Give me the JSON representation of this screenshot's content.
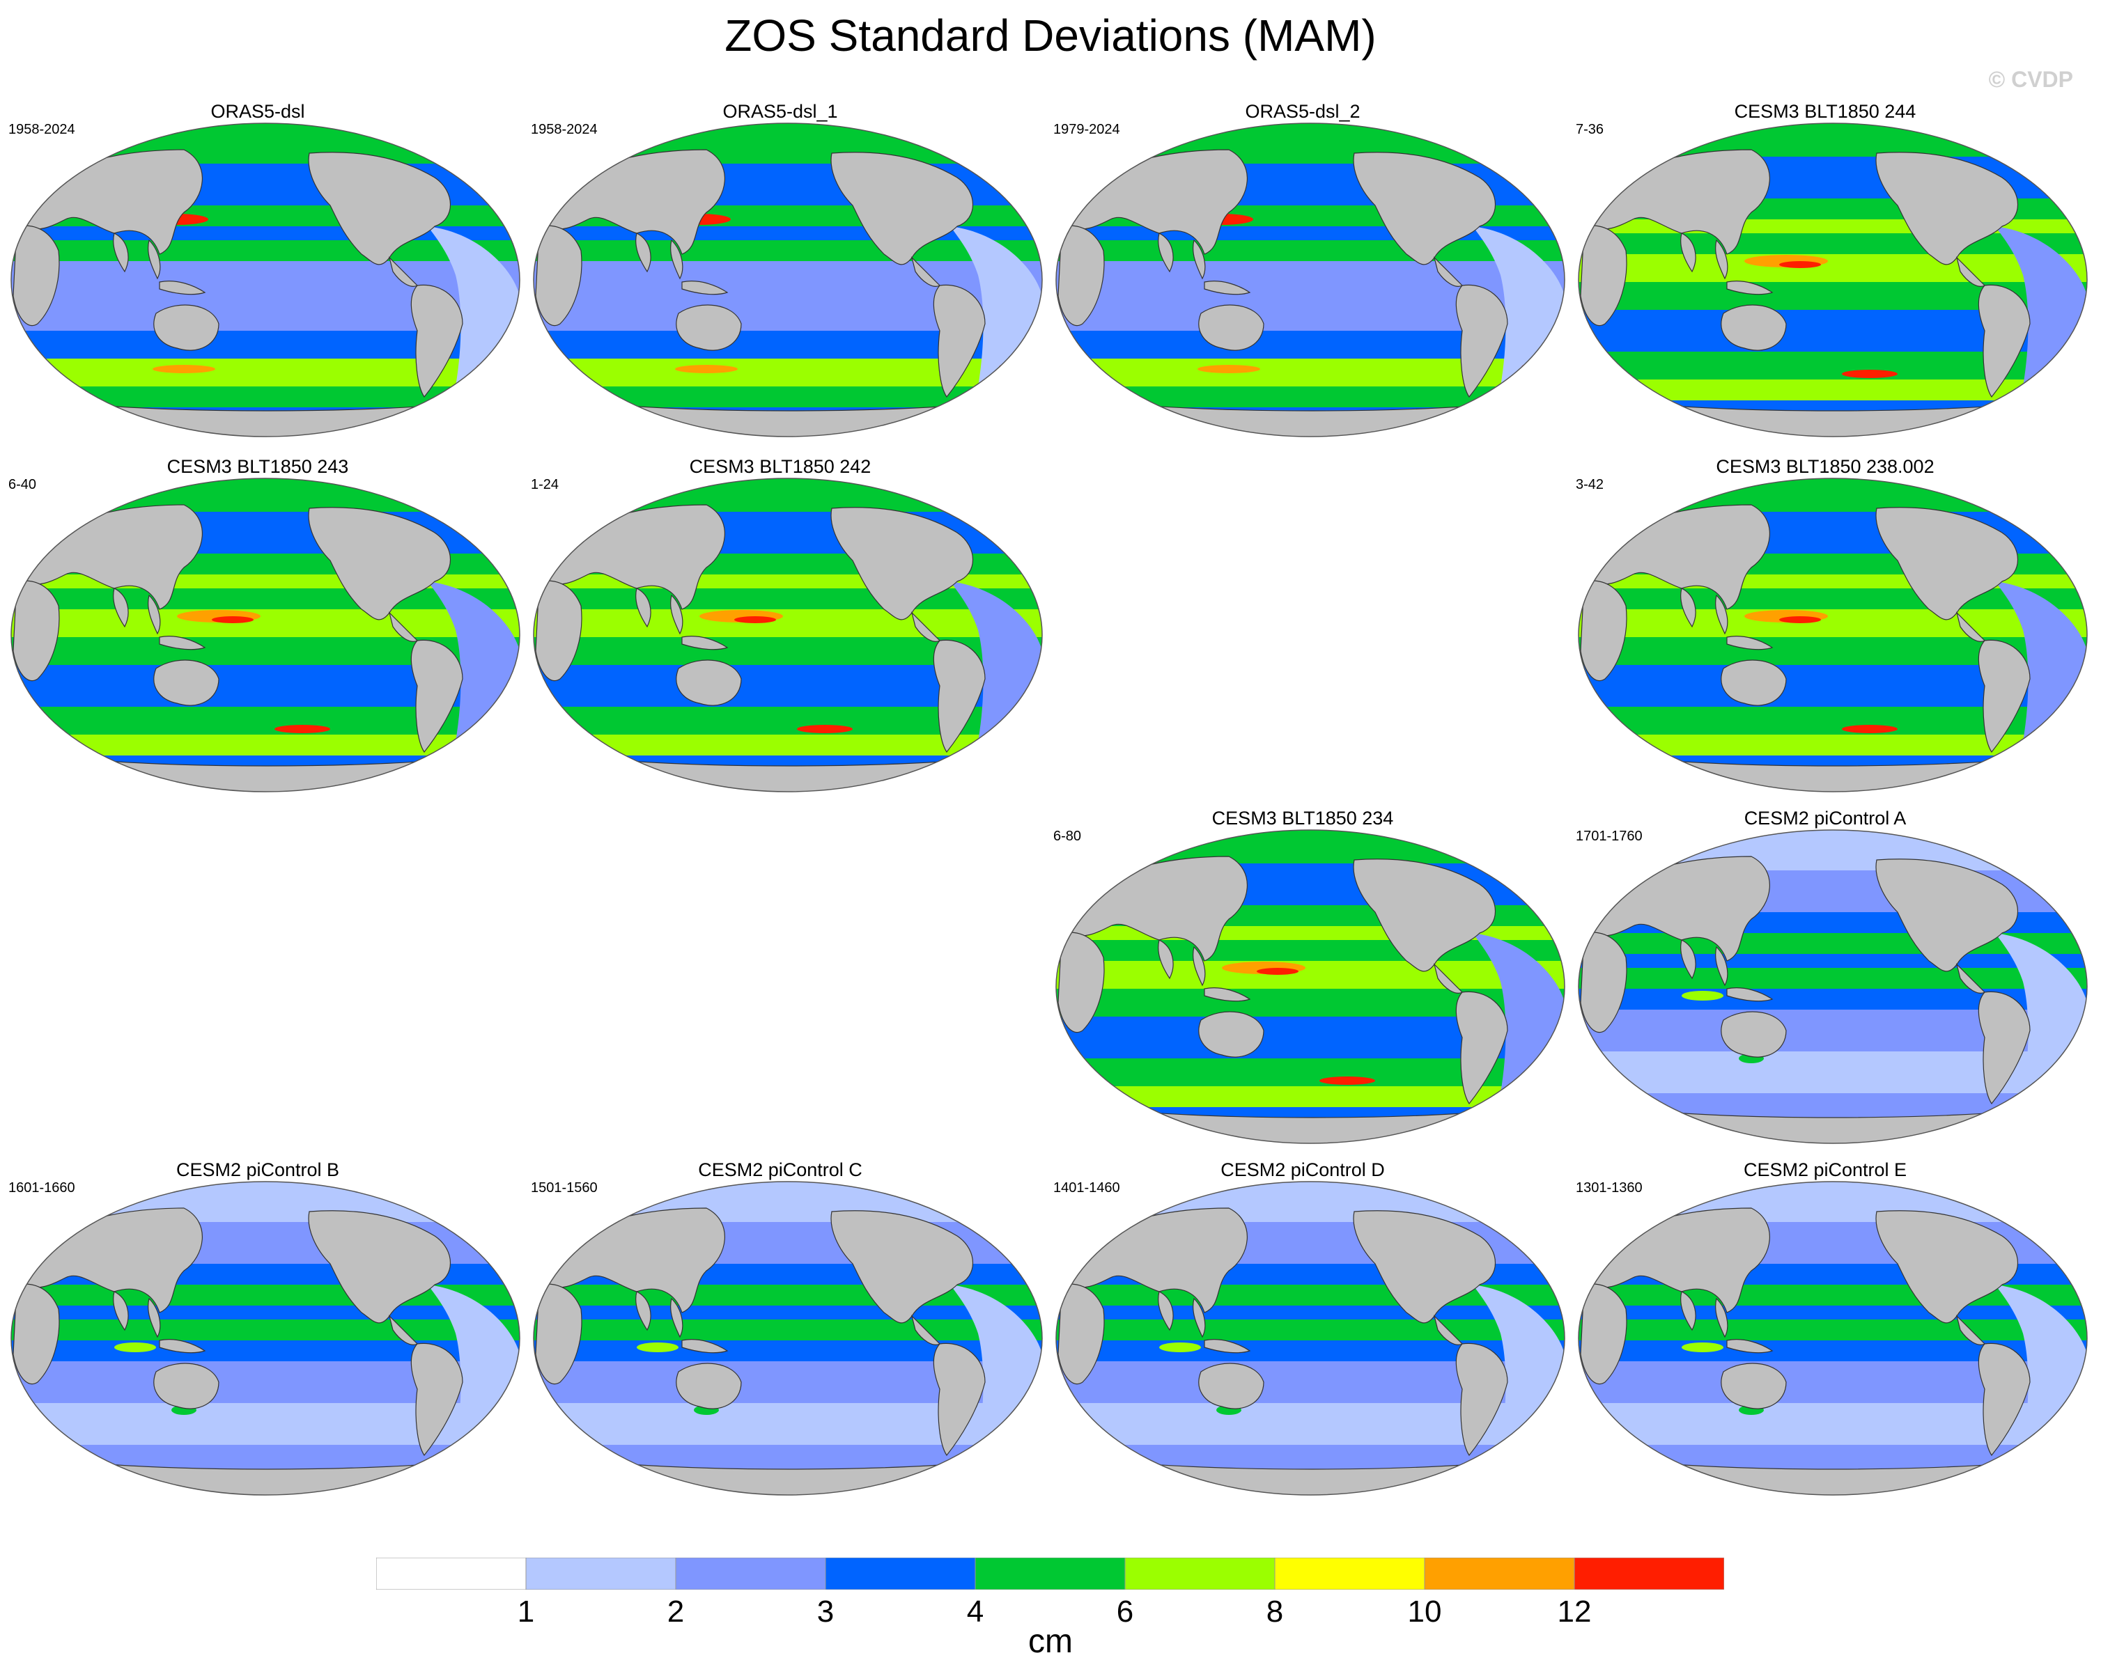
{
  "title": "ZOS Standard Deviations (MAM)",
  "copyright": "© CVDP",
  "colors": {
    "ocean_land": "#c0c0c0",
    "levels": [
      "#ffffff",
      "#b4c8ff",
      "#7f96ff",
      "#0064ff",
      "#00c832",
      "#9bff00",
      "#ffff00",
      "#ffa000",
      "#ff1e00"
    ]
  },
  "colorbar": {
    "ticks": [
      "1",
      "2",
      "3",
      "4",
      "6",
      "8",
      "10",
      "12"
    ],
    "units": "cm"
  },
  "panels": [
    {
      "title": "ORAS5-dsl",
      "years": "1958-2024",
      "style": "oras"
    },
    {
      "title": "ORAS5-dsl_1",
      "years": "1958-2024",
      "style": "oras"
    },
    {
      "title": "ORAS5-dsl_2",
      "years": "1979-2024",
      "style": "oras"
    },
    {
      "title": "CESM3 BLT1850 244",
      "years": "7-36",
      "style": "cesm3"
    },
    {
      "title": "CESM3 BLT1850 243",
      "years": "6-40",
      "style": "cesm3"
    },
    {
      "title": "CESM3 BLT1850 242",
      "years": "1-24",
      "style": "cesm3"
    },
    {
      "title": "CESM3 BLT1850 238.002",
      "years": "3-42",
      "style": "cesm3"
    },
    {
      "title": "CESM3 BLT1850 234",
      "years": "6-80",
      "style": "cesm3"
    },
    {
      "title": "CESM2 piControl A",
      "years": "1701-1760",
      "style": "cesm2"
    },
    {
      "title": "CESM2 piControl B",
      "years": "1601-1660",
      "style": "cesm2"
    },
    {
      "title": "CESM2 piControl C",
      "years": "1501-1560",
      "style": "cesm2"
    },
    {
      "title": "CESM2 piControl D",
      "years": "1401-1460",
      "style": "cesm2"
    },
    {
      "title": "CESM2 piControl E",
      "years": "1301-1360",
      "style": "cesm2"
    }
  ]
}
